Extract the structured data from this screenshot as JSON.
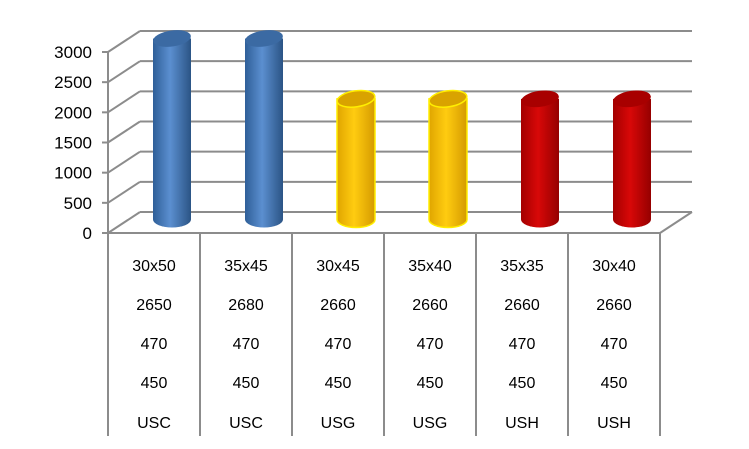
{
  "chart_data": {
    "type": "bar",
    "style": "3d-cylinder",
    "title": "",
    "xlabel": "",
    "ylabel": "",
    "ylim": [
      0,
      3000
    ],
    "yticks": [
      0,
      500,
      1000,
      1500,
      2000,
      2500,
      3000
    ],
    "grid": true,
    "legend": "none",
    "categories": [
      "30x50",
      "35x45",
      "30x45",
      "35x40",
      "35x35",
      "30x40"
    ],
    "values": [
      3000,
      3000,
      2000,
      2000,
      2000,
      2000
    ],
    "bar_colors": [
      "#4f81bd",
      "#4f81bd",
      "#ffc000",
      "#ffc000",
      "#c00000",
      "#c00000"
    ],
    "table_rows": [
      [
        "30x50",
        "35x45",
        "30x45",
        "35x40",
        "35x35",
        "30x40"
      ],
      [
        "2650",
        "2680",
        "2660",
        "2660",
        "2660",
        "2660"
      ],
      [
        "470",
        "470",
        "470",
        "470",
        "470",
        "470"
      ],
      [
        "450",
        "450",
        "450",
        "450",
        "450",
        "450"
      ],
      [
        "USC",
        "USC",
        "USG",
        "USG",
        "USH",
        "USH"
      ]
    ]
  },
  "colors": {
    "grid": "#8c8c8c",
    "blue": "#4f81bd",
    "yellow": "#ffc000",
    "red": "#c00000"
  }
}
